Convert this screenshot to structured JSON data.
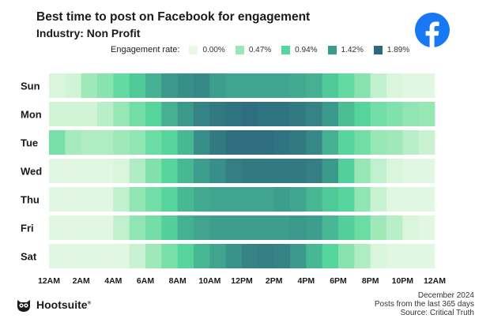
{
  "title": "Best time to post on Facebook for engagement",
  "subtitle": "Industry: Non Profit",
  "logo_icon": "facebook-logo-icon",
  "legend": {
    "title": "Engagement rate:",
    "items": [
      {
        "label": "0.00%",
        "color": "#eaf9e6"
      },
      {
        "label": "0.47%",
        "color": "#9be8b6"
      },
      {
        "label": "0.94%",
        "color": "#55d69c"
      },
      {
        "label": "1.42%",
        "color": "#3c9c8c"
      },
      {
        "label": "1.89%",
        "color": "#2e6a7e"
      }
    ]
  },
  "chart_data": {
    "type": "heatmap",
    "title": "Best time to post on Facebook for engagement",
    "subtitle": "Industry: Non Profit",
    "color_scale": {
      "min": 0.0,
      "max": 1.89,
      "unit": "%"
    },
    "rows": [
      "Sun",
      "Mon",
      "Tue",
      "Wed",
      "Thu",
      "Fri",
      "Sat"
    ],
    "x_tick_labels": [
      "12AM",
      "2AM",
      "4AM",
      "6AM",
      "8AM",
      "10AM",
      "12PM",
      "2PM",
      "4PM",
      "6PM",
      "8PM",
      "10PM",
      "12AM"
    ],
    "hours": [
      0,
      1,
      2,
      3,
      4,
      5,
      6,
      7,
      8,
      9,
      10,
      11,
      12,
      13,
      14,
      15,
      16,
      17,
      18,
      19,
      20,
      21,
      22,
      23
    ],
    "values": [
      [
        0.1,
        0.15,
        0.45,
        0.6,
        0.85,
        1.05,
        1.25,
        1.45,
        1.55,
        1.6,
        1.4,
        1.35,
        1.35,
        1.35,
        1.35,
        1.3,
        1.25,
        1.05,
        0.85,
        0.6,
        0.25,
        0.1,
        0.05,
        0.05
      ],
      [
        0.15,
        0.15,
        0.15,
        0.3,
        0.5,
        0.75,
        0.95,
        1.25,
        1.45,
        1.65,
        1.75,
        1.8,
        1.85,
        1.8,
        1.8,
        1.75,
        1.65,
        1.45,
        1.15,
        0.95,
        0.75,
        0.65,
        0.55,
        0.5
      ],
      [
        0.7,
        0.4,
        0.35,
        0.35,
        0.45,
        0.55,
        0.8,
        0.95,
        1.2,
        1.55,
        1.75,
        1.85,
        1.85,
        1.85,
        1.8,
        1.75,
        1.6,
        1.25,
        0.95,
        0.75,
        0.5,
        0.45,
        0.3,
        0.2
      ],
      [
        0.05,
        0.05,
        0.05,
        0.05,
        0.1,
        0.35,
        0.65,
        0.95,
        1.2,
        1.4,
        1.55,
        1.7,
        1.75,
        1.75,
        1.75,
        1.75,
        1.7,
        1.45,
        1.0,
        0.5,
        0.25,
        0.1,
        0.05,
        0.05
      ],
      [
        0.05,
        0.05,
        0.05,
        0.05,
        0.25,
        0.55,
        0.75,
        0.95,
        1.2,
        1.3,
        1.35,
        1.35,
        1.35,
        1.35,
        1.4,
        1.35,
        1.2,
        1.05,
        0.95,
        0.55,
        0.2,
        0.05,
        0.05,
        0.05
      ],
      [
        0.05,
        0.05,
        0.05,
        0.05,
        0.25,
        0.55,
        0.75,
        1.0,
        1.25,
        1.35,
        1.4,
        1.4,
        1.4,
        1.4,
        1.4,
        1.45,
        1.4,
        1.2,
        1.0,
        0.8,
        0.45,
        0.3,
        0.1,
        0.05
      ],
      [
        0.05,
        0.05,
        0.05,
        0.05,
        0.05,
        0.2,
        0.45,
        0.7,
        0.95,
        1.2,
        1.35,
        1.5,
        1.65,
        1.7,
        1.65,
        1.45,
        1.2,
        0.95,
        0.6,
        0.35,
        0.1,
        0.05,
        0.05,
        0.05
      ]
    ]
  },
  "footer": {
    "brand": "Hootsuite",
    "trademark": "®",
    "brand_icon": "owl-icon",
    "date": "December 2024",
    "period": "Posts from the last 365 days",
    "source": "Source: Critical Truth"
  }
}
